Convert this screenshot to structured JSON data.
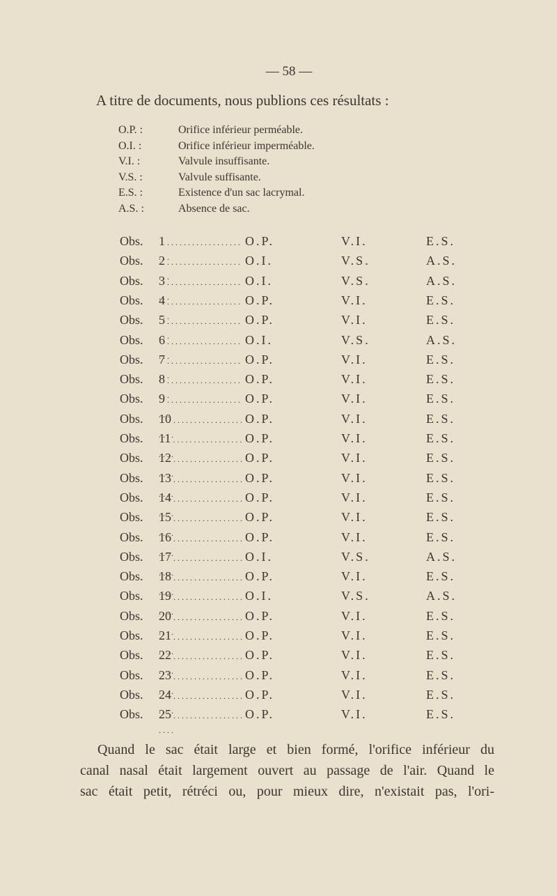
{
  "header": {
    "page_number": "— 58 —"
  },
  "intro": "A titre de documents, nous publions ces résultats :",
  "legend": [
    {
      "abbr": "O.P. :",
      "text": "Orifice inférieur perméable."
    },
    {
      "abbr": "O.I. :",
      "text": "Orifice inférieur imperméable."
    },
    {
      "abbr": "V.I. :",
      "text": "Valvule insuffisante."
    },
    {
      "abbr": "V.S. :",
      "text": "Valvule suffisante."
    },
    {
      "abbr": "E.S. :",
      "text": "Existence d'un sac lacrymal."
    },
    {
      "abbr": "A.S. :",
      "text": "Absence de sac."
    }
  ],
  "table": {
    "rows": [
      [
        "Obs.",
        "1",
        "O.P.",
        "V.I.",
        "E.S."
      ],
      [
        "Obs.",
        "2",
        "O.I.",
        "V.S.",
        "A.S."
      ],
      [
        "Obs.",
        "3",
        "O.I.",
        "V.S.",
        "A.S."
      ],
      [
        "Obs.",
        "4",
        "O.P.",
        "V.I.",
        "E.S."
      ],
      [
        "Obs.",
        "5",
        "O.P.",
        "V.I.",
        "E.S."
      ],
      [
        "Obs.",
        "6",
        "O.I.",
        "V.S.",
        "A.S."
      ],
      [
        "Obs.",
        "7",
        "O.P.",
        "V.I.",
        "E.S."
      ],
      [
        "Obs.",
        "8",
        "O.P.",
        "V.I.",
        "E.S."
      ],
      [
        "Obs.",
        "9",
        "O.P.",
        "V.I.",
        "E.S."
      ],
      [
        "Obs.",
        "10",
        "O.P.",
        "V.I.",
        "E.S."
      ],
      [
        "Obs.",
        "11",
        "O.P.",
        "V.I.",
        "E.S."
      ],
      [
        "Obs.",
        "12",
        "O.P.",
        "V.I.",
        "E.S."
      ],
      [
        "Obs.",
        "13",
        "O.P.",
        "V.I.",
        "E.S."
      ],
      [
        "Obs.",
        "14",
        "O.P.",
        "V.I.",
        "E.S."
      ],
      [
        "Obs.",
        "15",
        "O.P.",
        "V.I.",
        "E.S."
      ],
      [
        "Obs.",
        "16",
        "O.P.",
        "V.I.",
        "E.S."
      ],
      [
        "Obs.",
        "17",
        "O.I.",
        "V.S.",
        "A.S."
      ],
      [
        "Obs.",
        "18",
        "O.P.",
        "V.I.",
        "E.S."
      ],
      [
        "Obs.",
        "19",
        "O.I.",
        "V.S.",
        "A.S."
      ],
      [
        "Obs.",
        "20",
        "O.P.",
        "V.I.",
        "E.S."
      ],
      [
        "Obs.",
        "21",
        "O.P.",
        "V.I.",
        "E.S."
      ],
      [
        "Obs.",
        "22",
        "O.P.",
        "V.I.",
        "E.S."
      ],
      [
        "Obs.",
        "23",
        "O.P.",
        "V.I.",
        "E.S."
      ],
      [
        "Obs.",
        "24",
        "O.P.",
        "V.I.",
        "E.S."
      ],
      [
        "Obs.",
        "25",
        "O.P.",
        "V.I.",
        "E.S."
      ]
    ]
  },
  "paragraph": [
    "Quand le sac était large et bien formé, l'orifice inférieur du",
    "canal nasal était largement ouvert au passage de l'air. Quand le",
    "sac était petit, rétréci ou, pour mieux dire, n'existait pas, l'ori-"
  ]
}
